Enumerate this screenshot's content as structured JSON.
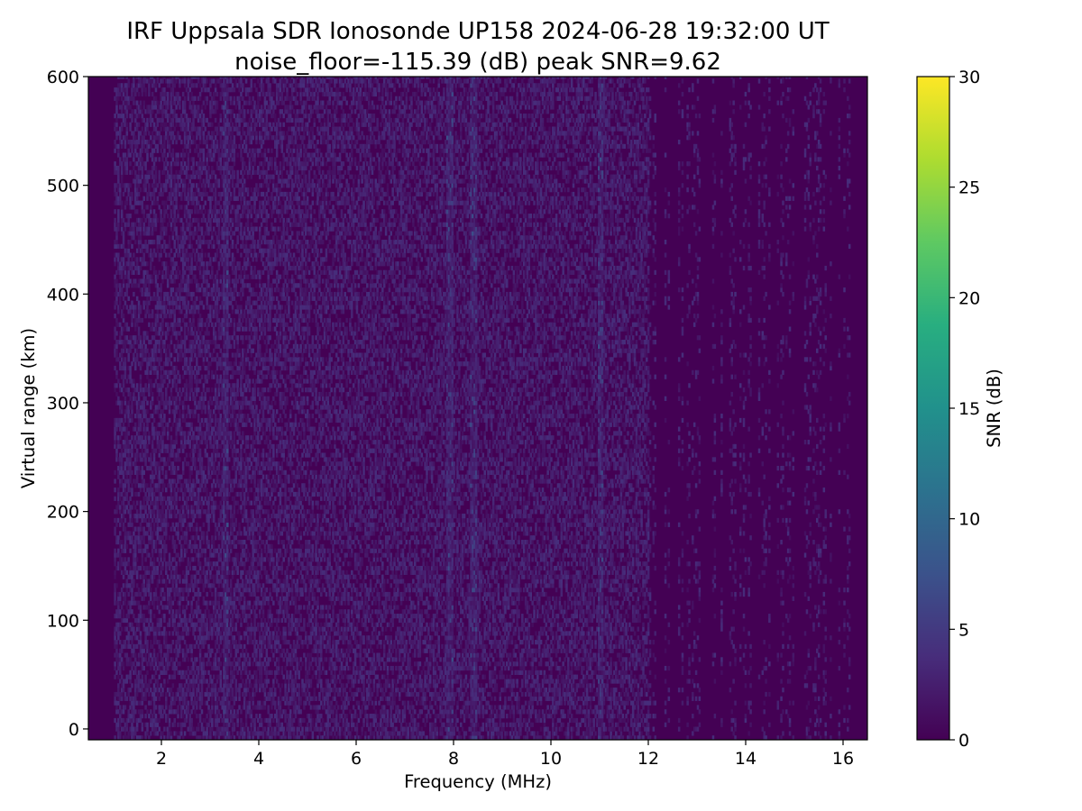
{
  "chart_data": {
    "type": "heatmap",
    "title": "IRF Uppsala SDR Ionosonde UP158 2024-06-28 19:32:00  UT",
    "subtitle": "noise_floor=-115.39 (dB) peak SNR=9.62",
    "xlabel": "Frequency (MHz)",
    "ylabel": "Virtual range (km)",
    "xlim": [
      0.5,
      16.5
    ],
    "ylim": [
      -10,
      600
    ],
    "x_ticks": [
      2,
      4,
      6,
      8,
      10,
      12,
      14,
      16
    ],
    "y_ticks": [
      0,
      100,
      200,
      300,
      400,
      500,
      600
    ],
    "colorbar": {
      "label": "SNR (dB)",
      "range": [
        0,
        30
      ],
      "ticks": [
        0,
        5,
        10,
        15,
        20,
        25,
        30
      ],
      "colormap": "viridis"
    },
    "grid": false,
    "background_snr_db": 0,
    "typical_noise_snr_db": [
      1,
      4
    ],
    "peak_snr_db": 9.62,
    "quiet_bands_mhz": [
      [
        0.5,
        1.0
      ],
      [
        16.3,
        16.5
      ]
    ],
    "notable_streaks_mhz": [
      3.3,
      7.9,
      8.4,
      11.0
    ]
  },
  "colors": {
    "viridis_low": "#440154",
    "viridis_mid": "#21918c",
    "viridis_high": "#fde725"
  }
}
